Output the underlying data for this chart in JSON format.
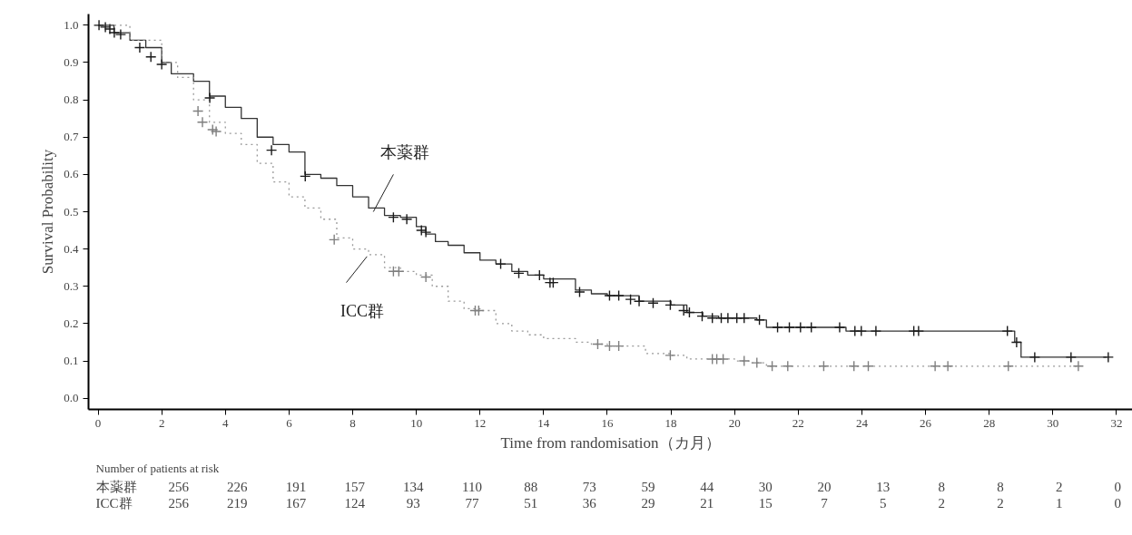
{
  "chart_data": {
    "type": "step",
    "xlabel": "Time from randomisation（カ月）",
    "ylabel": "Survival Probability",
    "xlim": [
      -0.3,
      32.5
    ],
    "ylim": [
      -0.03,
      1.03
    ],
    "xticks": [
      0,
      2,
      4,
      6,
      8,
      10,
      12,
      14,
      16,
      18,
      20,
      22,
      24,
      26,
      28,
      30,
      32
    ],
    "yticks": [
      {
        "value": 0,
        "label": "0.0"
      },
      {
        "value": 0.1,
        "label": "0.1"
      },
      {
        "value": 0.2,
        "label": "0.2"
      },
      {
        "value": 0.3,
        "label": "0.3"
      },
      {
        "value": 0.4,
        "label": "0.4"
      },
      {
        "value": 0.5,
        "label": "0.5"
      },
      {
        "value": 0.6,
        "label": "0.6"
      },
      {
        "value": 0.7,
        "label": "0.7"
      },
      {
        "value": 0.8,
        "label": "0.8"
      },
      {
        "value": 0.9,
        "label": "0.9"
      },
      {
        "value": 1,
        "label": "1.0"
      }
    ],
    "grid": false,
    "legend": false,
    "series": [
      {
        "name": "本薬群",
        "color": "#333333",
        "line_style": "solid",
        "x": [
          0,
          0.5,
          1,
          1.5,
          2,
          2.3,
          3,
          3.5,
          4,
          4.5,
          5,
          5.5,
          6,
          6.5,
          7,
          7.5,
          8,
          8.5,
          9,
          9.5,
          10,
          10.3,
          10.6,
          11,
          11.5,
          12,
          12.5,
          13,
          13.5,
          14,
          15,
          15.5,
          16,
          17,
          18,
          18.5,
          19,
          19.5,
          20,
          20.7,
          21,
          23.5,
          28.8,
          29,
          31.7
        ],
        "values": [
          1.0,
          0.98,
          0.96,
          0.94,
          0.9,
          0.87,
          0.85,
          0.81,
          0.78,
          0.75,
          0.7,
          0.68,
          0.66,
          0.6,
          0.59,
          0.57,
          0.54,
          0.51,
          0.49,
          0.485,
          0.46,
          0.44,
          0.42,
          0.41,
          0.39,
          0.37,
          0.36,
          0.34,
          0.33,
          0.32,
          0.29,
          0.28,
          0.275,
          0.26,
          0.25,
          0.23,
          0.22,
          0.215,
          0.215,
          0.21,
          0.19,
          0.18,
          0.15,
          0.11,
          0.11
        ]
      },
      {
        "name": "ICC群",
        "color": "#999999",
        "line_style": "dotted",
        "x": [
          0,
          1,
          2,
          2.5,
          3,
          3.5,
          4,
          4.5,
          5,
          5.5,
          6,
          6.5,
          7,
          7.5,
          8,
          8.5,
          9,
          9.5,
          10,
          10.5,
          11,
          11.5,
          12,
          12.5,
          13,
          13.5,
          14,
          15,
          15.5,
          16,
          17.2,
          18,
          18.5,
          20,
          20.5,
          21,
          30.8
        ],
        "values": [
          1.0,
          0.96,
          0.9,
          0.86,
          0.8,
          0.74,
          0.71,
          0.68,
          0.63,
          0.58,
          0.54,
          0.51,
          0.48,
          0.43,
          0.4,
          0.385,
          0.35,
          0.34,
          0.33,
          0.3,
          0.26,
          0.24,
          0.235,
          0.2,
          0.18,
          0.17,
          0.16,
          0.15,
          0.145,
          0.14,
          0.12,
          0.115,
          0.105,
          0.1,
          0.095,
          0.086,
          0.086
        ]
      },
      {
        "type": "scatter",
        "marker": "cross",
        "color": "#1a1a1a",
        "x": [
          0.03,
          0.23,
          0.37,
          0.51,
          0.71,
          1.31,
          1.66,
          2.0,
          3.51,
          5.45,
          6.51,
          9.28,
          9.7,
          10.16,
          10.3,
          12.65,
          13.22,
          13.87,
          14.2,
          14.3,
          15.13,
          16.07,
          16.36,
          16.73,
          17.0,
          17.44,
          17.98,
          18.4,
          18.58,
          18.98,
          19.3,
          19.58,
          19.79,
          20.07,
          20.3,
          20.78,
          21.35,
          21.72,
          22.07,
          22.41,
          23.3,
          23.78,
          23.98,
          24.44,
          25.63,
          25.78,
          28.57,
          28.86,
          29.43,
          30.57,
          31.74
        ],
        "values": [
          1.0,
          0.995,
          0.99,
          0.98,
          0.975,
          0.94,
          0.915,
          0.895,
          0.805,
          0.665,
          0.595,
          0.485,
          0.48,
          0.45,
          0.445,
          0.36,
          0.335,
          0.33,
          0.31,
          0.31,
          0.285,
          0.275,
          0.275,
          0.265,
          0.26,
          0.255,
          0.25,
          0.235,
          0.23,
          0.22,
          0.215,
          0.215,
          0.215,
          0.215,
          0.215,
          0.21,
          0.19,
          0.19,
          0.19,
          0.19,
          0.19,
          0.18,
          0.18,
          0.18,
          0.18,
          0.18,
          0.18,
          0.15,
          0.11,
          0.11,
          0.11
        ]
      },
      {
        "type": "scatter",
        "marker": "cross",
        "color": "#7f7f7f",
        "x": [
          3.14,
          3.28,
          3.6,
          3.71,
          7.42,
          9.28,
          9.45,
          10.3,
          11.85,
          11.96,
          15.7,
          16.07,
          16.36,
          17.98,
          19.3,
          19.44,
          19.64,
          20.3,
          20.7,
          21.18,
          21.67,
          22.8,
          23.75,
          24.2,
          26.3,
          26.7,
          28.6,
          30.8
        ],
        "values": [
          0.77,
          0.74,
          0.72,
          0.715,
          0.425,
          0.34,
          0.34,
          0.325,
          0.235,
          0.235,
          0.145,
          0.14,
          0.14,
          0.115,
          0.105,
          0.105,
          0.105,
          0.1,
          0.095,
          0.086,
          0.086,
          0.086,
          0.086,
          0.086,
          0.086,
          0.086,
          0.086,
          0.086
        ]
      }
    ],
    "annotations": [
      "Number of patients at risk",
      "本薬群 256 226 191 157 134 110 88 73 59 44 30 20 13 8 8 2 0",
      "ICC群 256 219 167 124 93 77 51 36 29 21 15 7 5 2 2 1 0"
    ]
  }
}
